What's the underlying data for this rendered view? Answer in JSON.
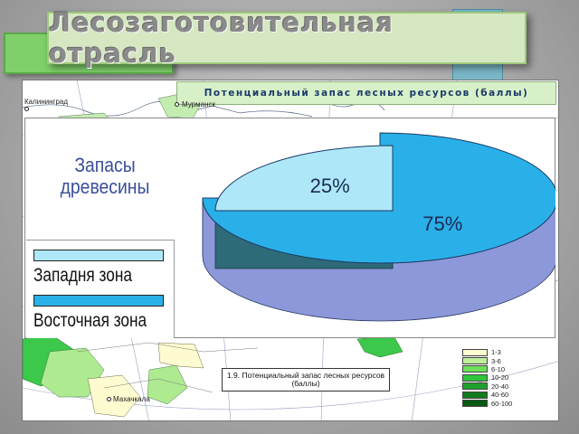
{
  "slide": {
    "title": "Лесозаготовительная  отрасль",
    "colors": {
      "title_box": "#d6e8c2",
      "accent_green": "#7fd06a",
      "accent_teal": "#7ab8c8"
    }
  },
  "map": {
    "header": "Потенциальный  запас  лесных  ресурсов (баллы)",
    "cities": [
      "Калининград",
      "Мурманск",
      "Махачкала"
    ],
    "caption": "1.9. Потенциальный запас лесных ресурсов (баллы)",
    "legend": [
      {
        "label": "1-3",
        "color": "#fffbd0"
      },
      {
        "label": "3-6",
        "color": "#bfee9a"
      },
      {
        "label": "6-10",
        "color": "#6ee05a"
      },
      {
        "label": "10-20",
        "color": "#2fc43a"
      },
      {
        "label": "20-40",
        "color": "#1ea02c"
      },
      {
        "label": "40-60",
        "color": "#117a1e"
      },
      {
        "label": "60-100",
        "color": "#055a12"
      }
    ]
  },
  "chart_data": {
    "type": "pie",
    "title": "Запасы древесины",
    "categories": [
      "Западня зона",
      "Восточная зона"
    ],
    "values": [
      25,
      75
    ],
    "labels": [
      "25%",
      "75%"
    ],
    "colors": [
      "#aee8f8",
      "#2ab0e8"
    ],
    "legend": "left",
    "style": "3d-exploded"
  }
}
